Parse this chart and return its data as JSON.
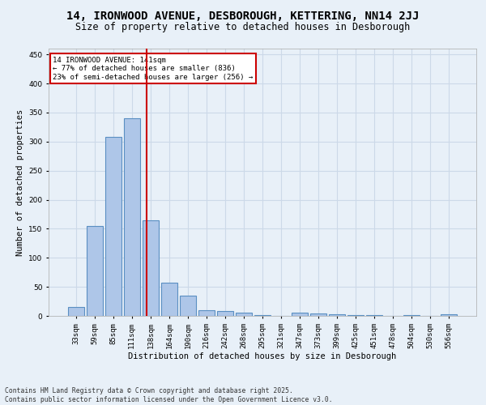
{
  "title": "14, IRONWOOD AVENUE, DESBOROUGH, KETTERING, NN14 2JJ",
  "subtitle": "Size of property relative to detached houses in Desborough",
  "xlabel": "Distribution of detached houses by size in Desborough",
  "ylabel": "Number of detached properties",
  "categories": [
    "33sqm",
    "59sqm",
    "85sqm",
    "111sqm",
    "138sqm",
    "164sqm",
    "190sqm",
    "216sqm",
    "242sqm",
    "268sqm",
    "295sqm",
    "321sqm",
    "347sqm",
    "373sqm",
    "399sqm",
    "425sqm",
    "451sqm",
    "478sqm",
    "504sqm",
    "530sqm",
    "556sqm"
  ],
  "values": [
    15,
    155,
    308,
    340,
    165,
    57,
    35,
    10,
    8,
    5,
    1,
    0,
    5,
    4,
    3,
    1,
    1,
    0,
    1,
    0,
    3
  ],
  "bar_color": "#aec6e8",
  "bar_edge_color": "#5a8fc2",
  "grid_color": "#ccd9e8",
  "background_color": "#e8f0f8",
  "vline_x": 3.77,
  "vline_color": "#cc0000",
  "annotation_text": "14 IRONWOOD AVENUE: 141sqm\n← 77% of detached houses are smaller (836)\n23% of semi-detached houses are larger (256) →",
  "annotation_box_color": "#ffffff",
  "annotation_box_edge": "#cc0000",
  "footer_text": "Contains HM Land Registry data © Crown copyright and database right 2025.\nContains public sector information licensed under the Open Government Licence v3.0.",
  "ylim": [
    0,
    460
  ],
  "yticks": [
    0,
    50,
    100,
    150,
    200,
    250,
    300,
    350,
    400,
    450
  ],
  "title_fontsize": 10,
  "subtitle_fontsize": 8.5,
  "axis_label_fontsize": 7.5,
  "tick_fontsize": 6.5,
  "annotation_fontsize": 6.5,
  "footer_fontsize": 5.8
}
